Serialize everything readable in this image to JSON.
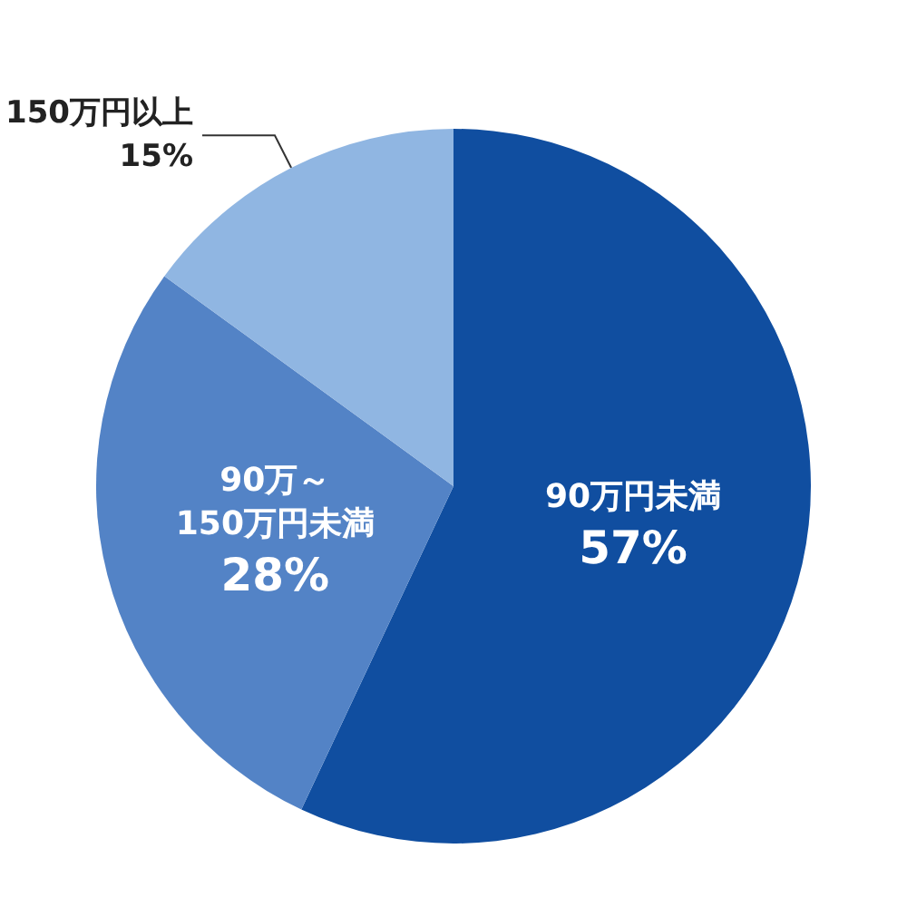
{
  "chart_data": {
    "type": "pie",
    "categories": [
      "90万円未満",
      "90万～\n150万円未満",
      "150万円以上"
    ],
    "values": [
      57,
      28,
      15
    ],
    "colors": [
      "#104ea0",
      "#5383c6",
      "#90b6e2"
    ],
    "value_labels": [
      "57%",
      "28%",
      "15%"
    ],
    "legend": false
  }
}
